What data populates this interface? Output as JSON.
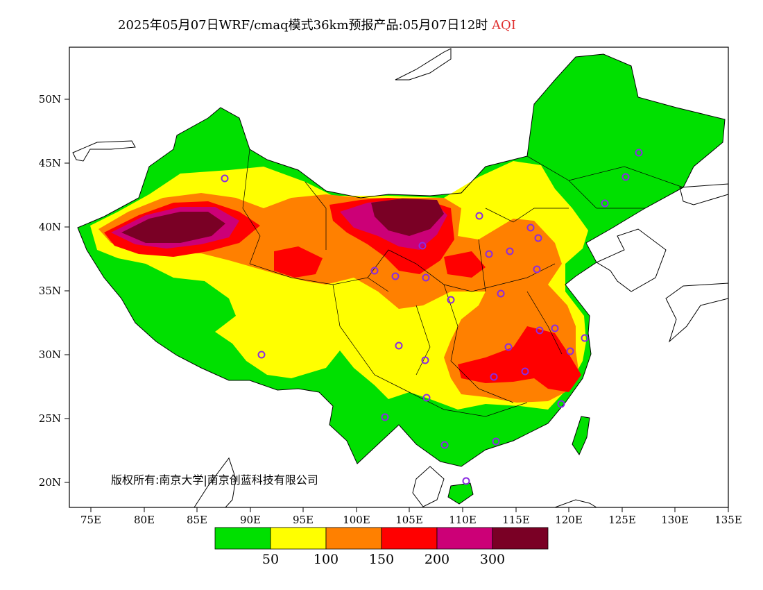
{
  "title": {
    "main": "2025年05月07日WRF/cmaq模式36km预报产品:05月07日12时",
    "variable": "AQI",
    "variable_color": "#e03030"
  },
  "map": {
    "lat_labels": [
      "50N",
      "45N",
      "40N",
      "35N",
      "30N",
      "25N",
      "20N"
    ],
    "lon_labels": [
      "75E",
      "80E",
      "85E",
      "90E",
      "95E",
      "100E",
      "105E",
      "110E",
      "115E",
      "120E",
      "125E",
      "130E",
      "135E"
    ],
    "copyright": "版权所有:南京大学|南京创蓝科技有限公司"
  },
  "legend": {
    "colors": [
      "#00e000",
      "#ffff00",
      "#ff8000",
      "#ff0000",
      "#cc0077",
      "#7a0025"
    ],
    "thresholds": [
      "50",
      "100",
      "150",
      "200",
      "300"
    ]
  }
}
